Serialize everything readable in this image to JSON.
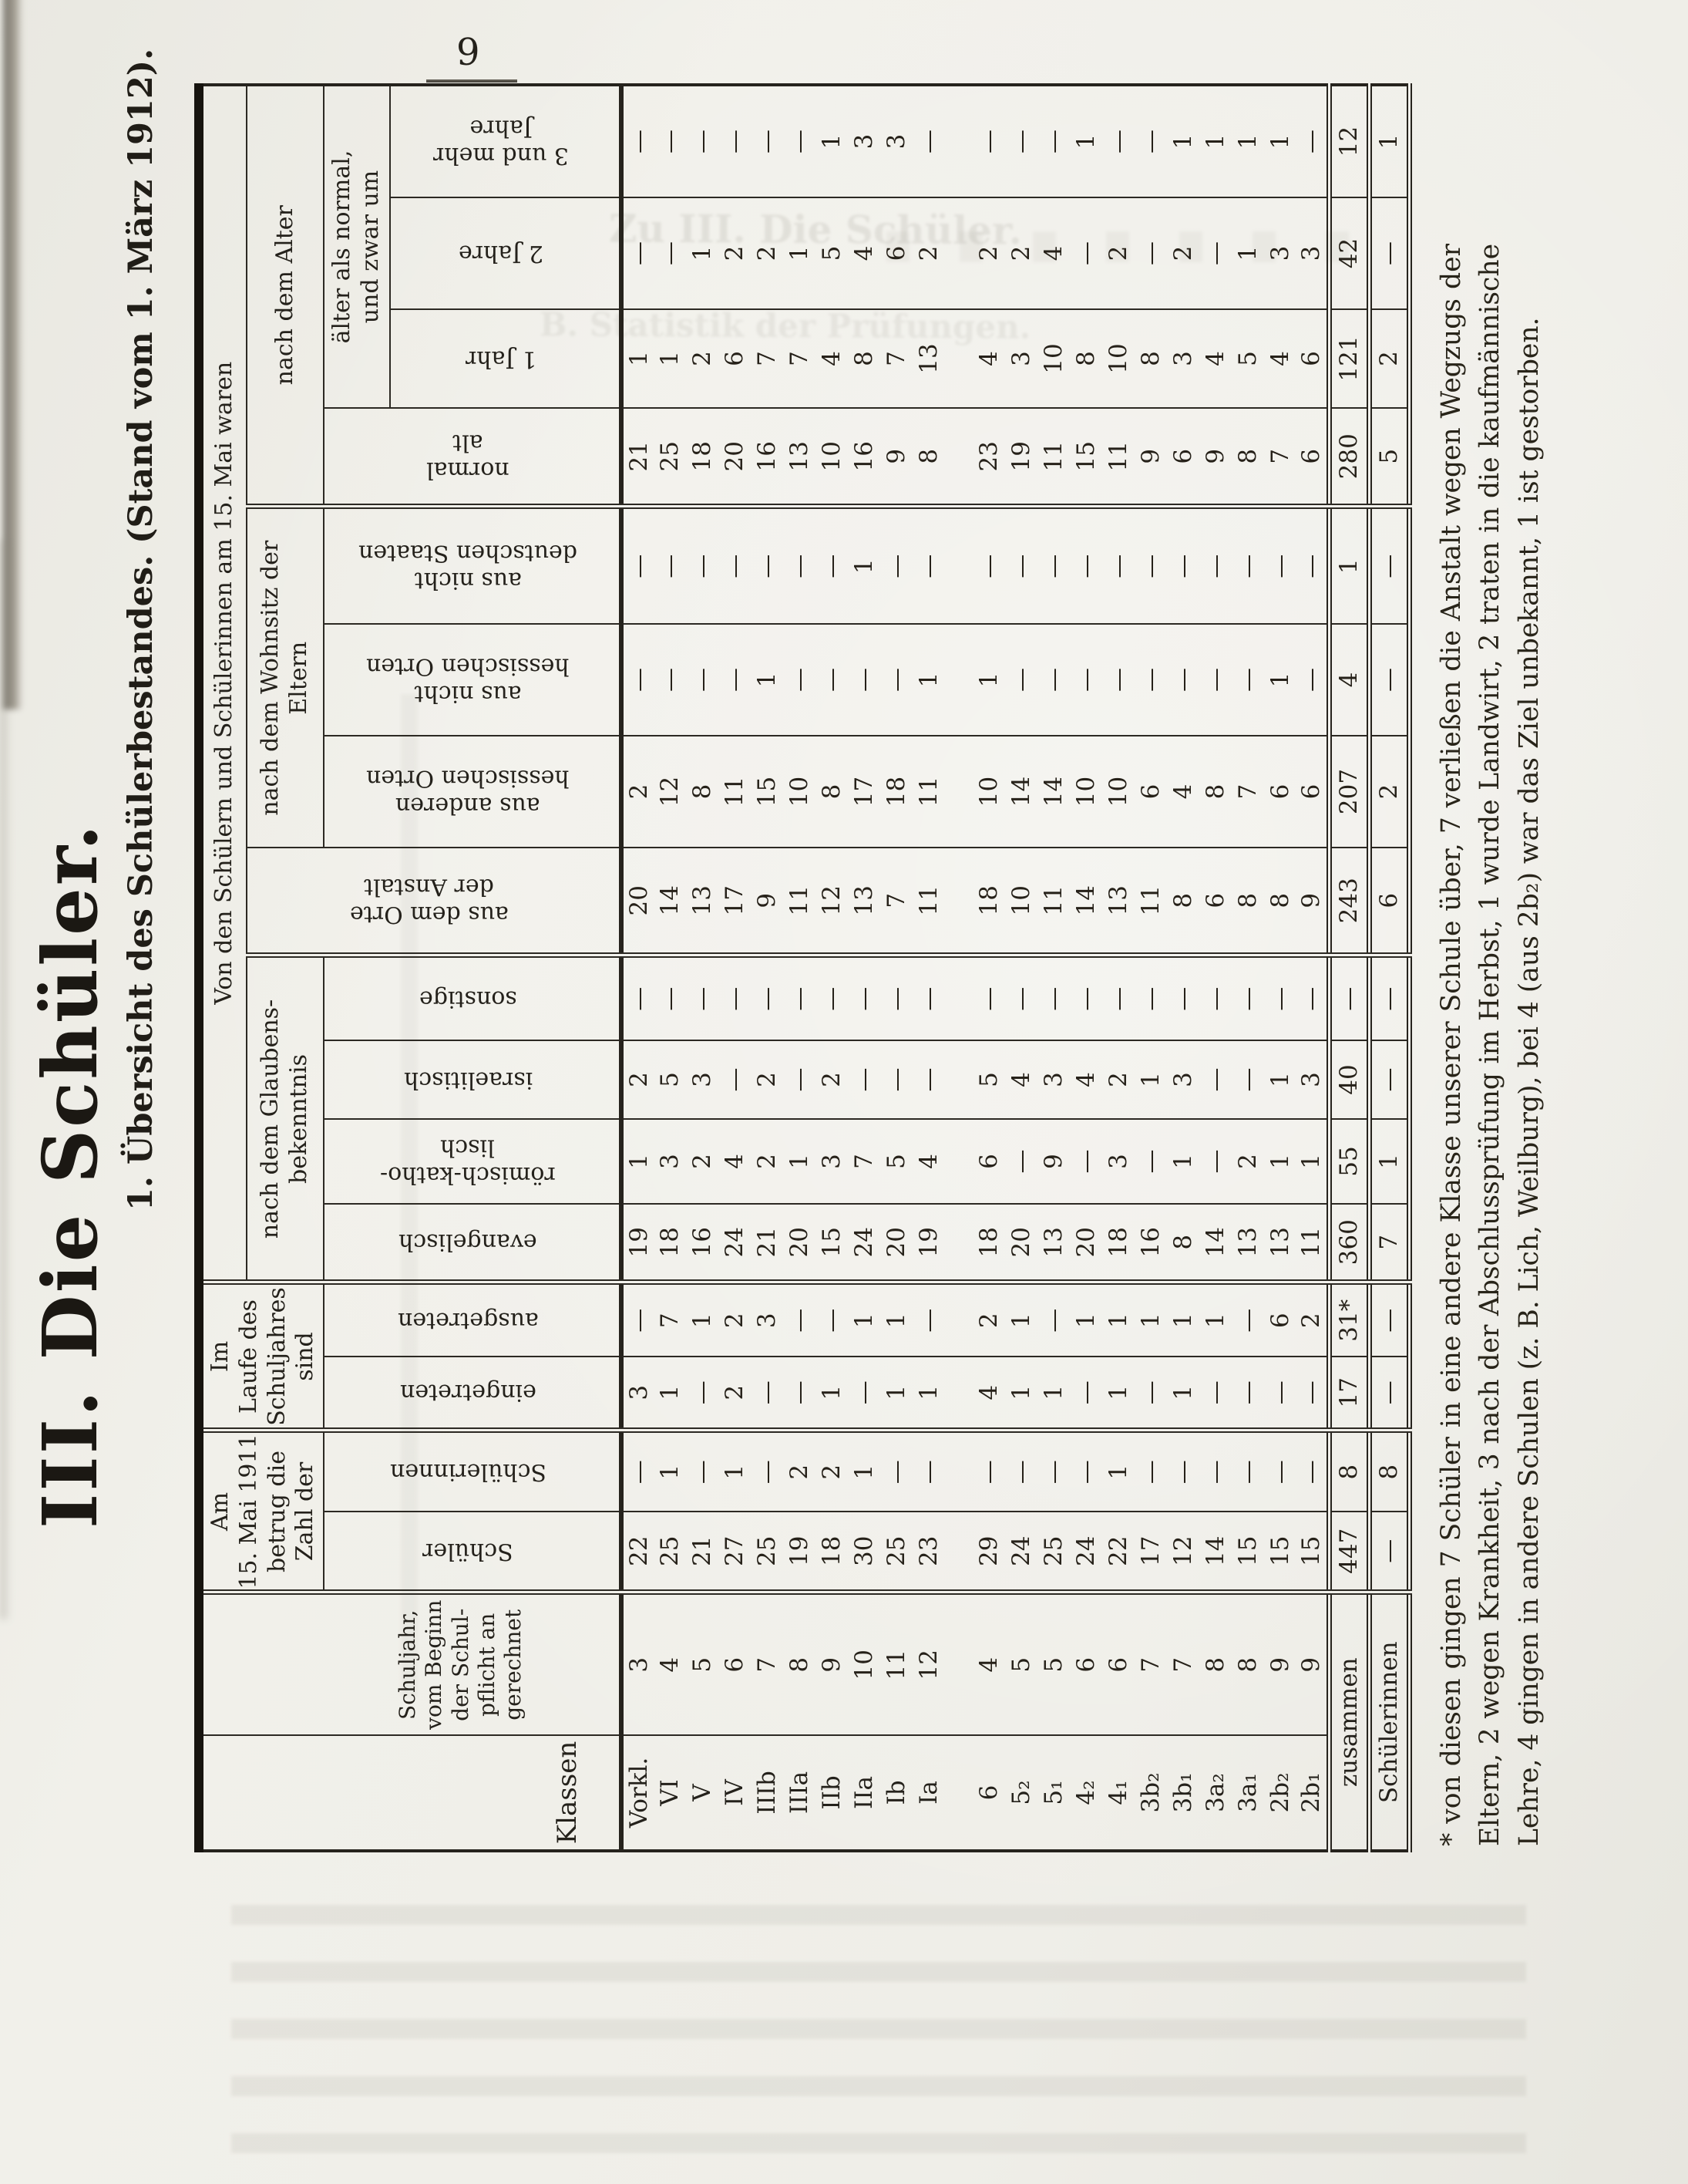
{
  "page": {
    "number": "9"
  },
  "title": "III. Die Schüler.",
  "subtitle": "1. Übersicht des Schülerbestandes. (Stand vom 1. März 1912).",
  "table": {
    "headers": {
      "klassen": "Klassen",
      "schuljahr": "Schuljahr,\nvom Beginn der Schul-\npflicht an gerechnet",
      "am15": "Am\n15. Mai 1911\nbetrug die\nZahl der",
      "schueler": "Schüler",
      "schuelerinnen": "Schülerinnen",
      "imlaufe": "Im\nLaufe des\nSchuljahres\nsind",
      "eingetreten": "eingetreten",
      "ausgetreten": "ausgetreten",
      "vonden": "Von den Schülern und Schülerinnen am 15. Mai waren",
      "glauben": "nach dem Glaubens-\nbekenntnis",
      "evangelisch": "evangelisch",
      "roemisch": "römisch-katho-\nlisch",
      "israelitisch": "israelitisch",
      "sonstige": "sonstige",
      "ort_anstalt": "aus dem Orte\nder Anstalt",
      "wohnsitz": "nach dem Wohnsitz der\nEltern",
      "andere_hess": "aus anderen\nhessischen Orten",
      "nicht_hess": "aus nicht\nhessischen Orten",
      "nicht_deutsch": "aus nicht\ndeutschen Staaten",
      "alter": "nach dem Alter",
      "normal_alt": "normal\nalt",
      "aelter": "älter als normal,\nund zwar um",
      "jahr1": "1 Jahr",
      "jahr2": "2 Jahre",
      "jahr3": "3 und mehr\nJahre"
    },
    "rows": [
      {
        "klasse": "Vorkl.",
        "werte": [
          "3",
          "22",
          "—",
          "3",
          "—",
          "19",
          "1",
          "2",
          "—",
          "20",
          "2",
          "—",
          "—",
          "21",
          "1",
          "—",
          "—"
        ]
      },
      {
        "klasse": "VI",
        "werte": [
          "4",
          "25",
          "1",
          "1",
          "7",
          "18",
          "3",
          "5",
          "—",
          "14",
          "12",
          "—",
          "—",
          "25",
          "1",
          "—",
          "—"
        ]
      },
      {
        "klasse": "V",
        "werte": [
          "5",
          "21",
          "—",
          "—",
          "1",
          "16",
          "2",
          "3",
          "—",
          "13",
          "8",
          "—",
          "—",
          "18",
          "2",
          "1",
          "—"
        ]
      },
      {
        "klasse": "IV",
        "werte": [
          "6",
          "27",
          "1",
          "2",
          "2",
          "24",
          "4",
          "—",
          "—",
          "17",
          "11",
          "—",
          "—",
          "20",
          "6",
          "2",
          "—"
        ]
      },
      {
        "klasse": "IIIb",
        "werte": [
          "7",
          "25",
          "—",
          "—",
          "3",
          "21",
          "2",
          "2",
          "—",
          "9",
          "15",
          "1",
          "—",
          "16",
          "7",
          "2",
          "—"
        ]
      },
      {
        "klasse": "IIIa",
        "werte": [
          "8",
          "19",
          "2",
          "—",
          "—",
          "20",
          "1",
          "—",
          "—",
          "11",
          "10",
          "—",
          "—",
          "13",
          "7",
          "1",
          "—"
        ]
      },
      {
        "klasse": "IIb",
        "werte": [
          "9",
          "18",
          "2",
          "1",
          "—",
          "15",
          "3",
          "2",
          "—",
          "12",
          "8",
          "—",
          "—",
          "10",
          "4",
          "5",
          "1"
        ]
      },
      {
        "klasse": "IIa",
        "werte": [
          "10",
          "30",
          "1",
          "—",
          "1",
          "24",
          "7",
          "—",
          "—",
          "13",
          "17",
          "—",
          "1",
          "16",
          "8",
          "4",
          "3"
        ]
      },
      {
        "klasse": "Ib",
        "werte": [
          "11",
          "25",
          "—",
          "1",
          "1",
          "20",
          "5",
          "—",
          "—",
          "7",
          "18",
          "—",
          "—",
          "9",
          "7",
          "6",
          "3"
        ]
      },
      {
        "klasse": "Ia",
        "werte": [
          "12",
          "23",
          "—",
          "1",
          "—",
          "19",
          "4",
          "—",
          "—",
          "11",
          "11",
          "1",
          "—",
          "8",
          "13",
          "2",
          "—"
        ]
      },
      {
        "klasse": "6",
        "werte": [
          "4",
          "29",
          "—",
          "4",
          "2",
          "18",
          "6",
          "5",
          "—",
          "18",
          "10",
          "1",
          "—",
          "23",
          "4",
          "2",
          "—"
        ]
      },
      {
        "klasse": "5₂",
        "werte": [
          "5",
          "24",
          "—",
          "1",
          "1",
          "20",
          "—",
          "4",
          "—",
          "10",
          "14",
          "—",
          "—",
          "19",
          "3",
          "2",
          "—"
        ]
      },
      {
        "klasse": "5₁",
        "werte": [
          "5",
          "25",
          "—",
          "1",
          "—",
          "13",
          "9",
          "3",
          "—",
          "11",
          "14",
          "—",
          "—",
          "11",
          "10",
          "4",
          "—"
        ]
      },
      {
        "klasse": "4₂",
        "werte": [
          "6",
          "24",
          "—",
          "—",
          "1",
          "20",
          "—",
          "4",
          "—",
          "14",
          "10",
          "—",
          "—",
          "15",
          "8",
          "—",
          "1"
        ]
      },
      {
        "klasse": "4₁",
        "werte": [
          "6",
          "22",
          "1",
          "1",
          "1",
          "18",
          "3",
          "2",
          "—",
          "13",
          "10",
          "—",
          "—",
          "11",
          "10",
          "2",
          "—"
        ]
      },
      {
        "klasse": "3b₂",
        "werte": [
          "7",
          "17",
          "—",
          "—",
          "1",
          "16",
          "—",
          "1",
          "—",
          "11",
          "6",
          "—",
          "—",
          "9",
          "8",
          "—",
          "—"
        ]
      },
      {
        "klasse": "3b₁",
        "werte": [
          "7",
          "12",
          "—",
          "1",
          "1",
          "8",
          "1",
          "3",
          "—",
          "8",
          "4",
          "—",
          "—",
          "6",
          "3",
          "2",
          "1"
        ]
      },
      {
        "klasse": "3a₂",
        "werte": [
          "8",
          "14",
          "—",
          "—",
          "1",
          "14",
          "—",
          "—",
          "—",
          "6",
          "8",
          "—",
          "—",
          "9",
          "4",
          "—",
          "1"
        ]
      },
      {
        "klasse": "3a₁",
        "werte": [
          "8",
          "15",
          "—",
          "—",
          "—",
          "13",
          "2",
          "—",
          "—",
          "8",
          "7",
          "—",
          "—",
          "8",
          "5",
          "1",
          "1"
        ]
      },
      {
        "klasse": "2b₂",
        "werte": [
          "9",
          "15",
          "—",
          "—",
          "6",
          "13",
          "1",
          "1",
          "—",
          "8",
          "6",
          "1",
          "—",
          "7",
          "4",
          "3",
          "1"
        ]
      },
      {
        "klasse": "2b₁",
        "werte": [
          "9",
          "15",
          "—",
          "—",
          "2",
          "11",
          "1",
          "3",
          "—",
          "9",
          "6",
          "—",
          "—",
          "6",
          "6",
          "3",
          "—"
        ]
      }
    ],
    "zusammen": {
      "label": "zusammen",
      "werte": [
        "447",
        "8",
        "17",
        "31*",
        "360",
        "55",
        "40",
        "—",
        "243",
        "207",
        "4",
        "1",
        "280",
        "121",
        "42",
        "12"
      ]
    },
    "schuelerinnen_row": {
      "label": "Schülerinnen",
      "werte": [
        "—",
        "8",
        "—",
        "—",
        "7",
        "1",
        "—",
        "—",
        "6",
        "2",
        "—",
        "—",
        "5",
        "2",
        "—",
        "1"
      ]
    }
  },
  "footnote": "* von diesen gingen 7 Schüler in eine andere Klasse unserer Schule über, 7 verließen die Anstalt wegen Wegzugs der Eltern, 2 wegen Krankheit, 3 nach der Abschlussprüfung im Herbst, 1 wurde Landwirt, 2 traten in die kaufmännische Lehre, 4 gingen in andere Schulen (z. B. Lich, Weilburg), bei 4 (aus 2b₂) war das Ziel unbekannt, 1 ist gestorben.",
  "ghosts": {
    "g1": "Zu III. Die Schüler.",
    "g2": "B. Statistik der Prüfungen."
  }
}
